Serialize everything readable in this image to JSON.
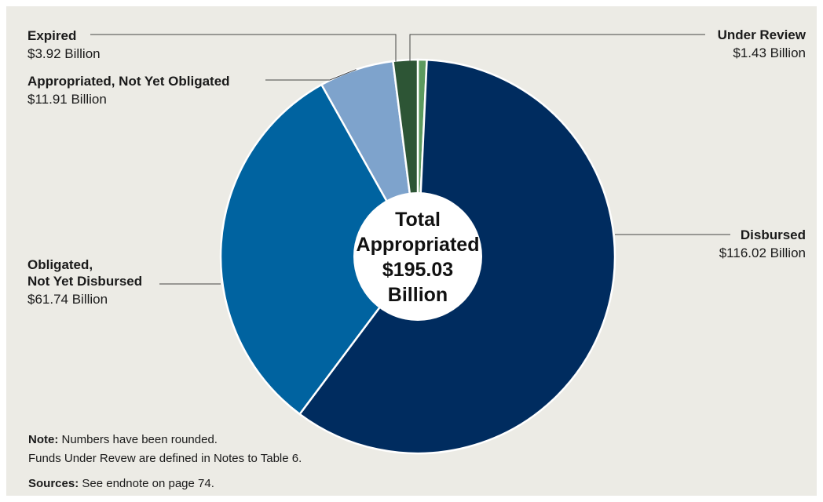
{
  "chart_data": {
    "type": "pie",
    "center_label": [
      "Total",
      "Appropriated",
      "$195.03",
      "Billion"
    ],
    "slices": [
      {
        "name": "Under Review",
        "value": 1.43,
        "value_label": "$1.43 Billion",
        "color": "#5c9a5e"
      },
      {
        "name": "Disbursed",
        "value": 116.02,
        "value_label": "$116.02 Billion",
        "color": "#002c5f"
      },
      {
        "name": "Obligated, Not Yet Disbursed",
        "name_lines": [
          "Obligated,",
          "Not Yet Disbursed"
        ],
        "value": 61.74,
        "value_label": "$61.74 Billion",
        "color": "#0063a0"
      },
      {
        "name": "Appropriated, Not Yet Obligated",
        "value": 11.91,
        "value_label": "$11.91 Billion",
        "color": "#7ea3cc"
      },
      {
        "name": "Expired",
        "value": 3.92,
        "value_label": "$3.92 Billion",
        "color": "#2d5535"
      }
    ]
  },
  "notes": {
    "note_label": "Note:",
    "note_text": "Numbers have been rounded.",
    "note_line2": "Funds Under Revew are defined in Notes to Table 6.",
    "sources_label": "Sources:",
    "sources_text": "See endnote on page 74."
  }
}
